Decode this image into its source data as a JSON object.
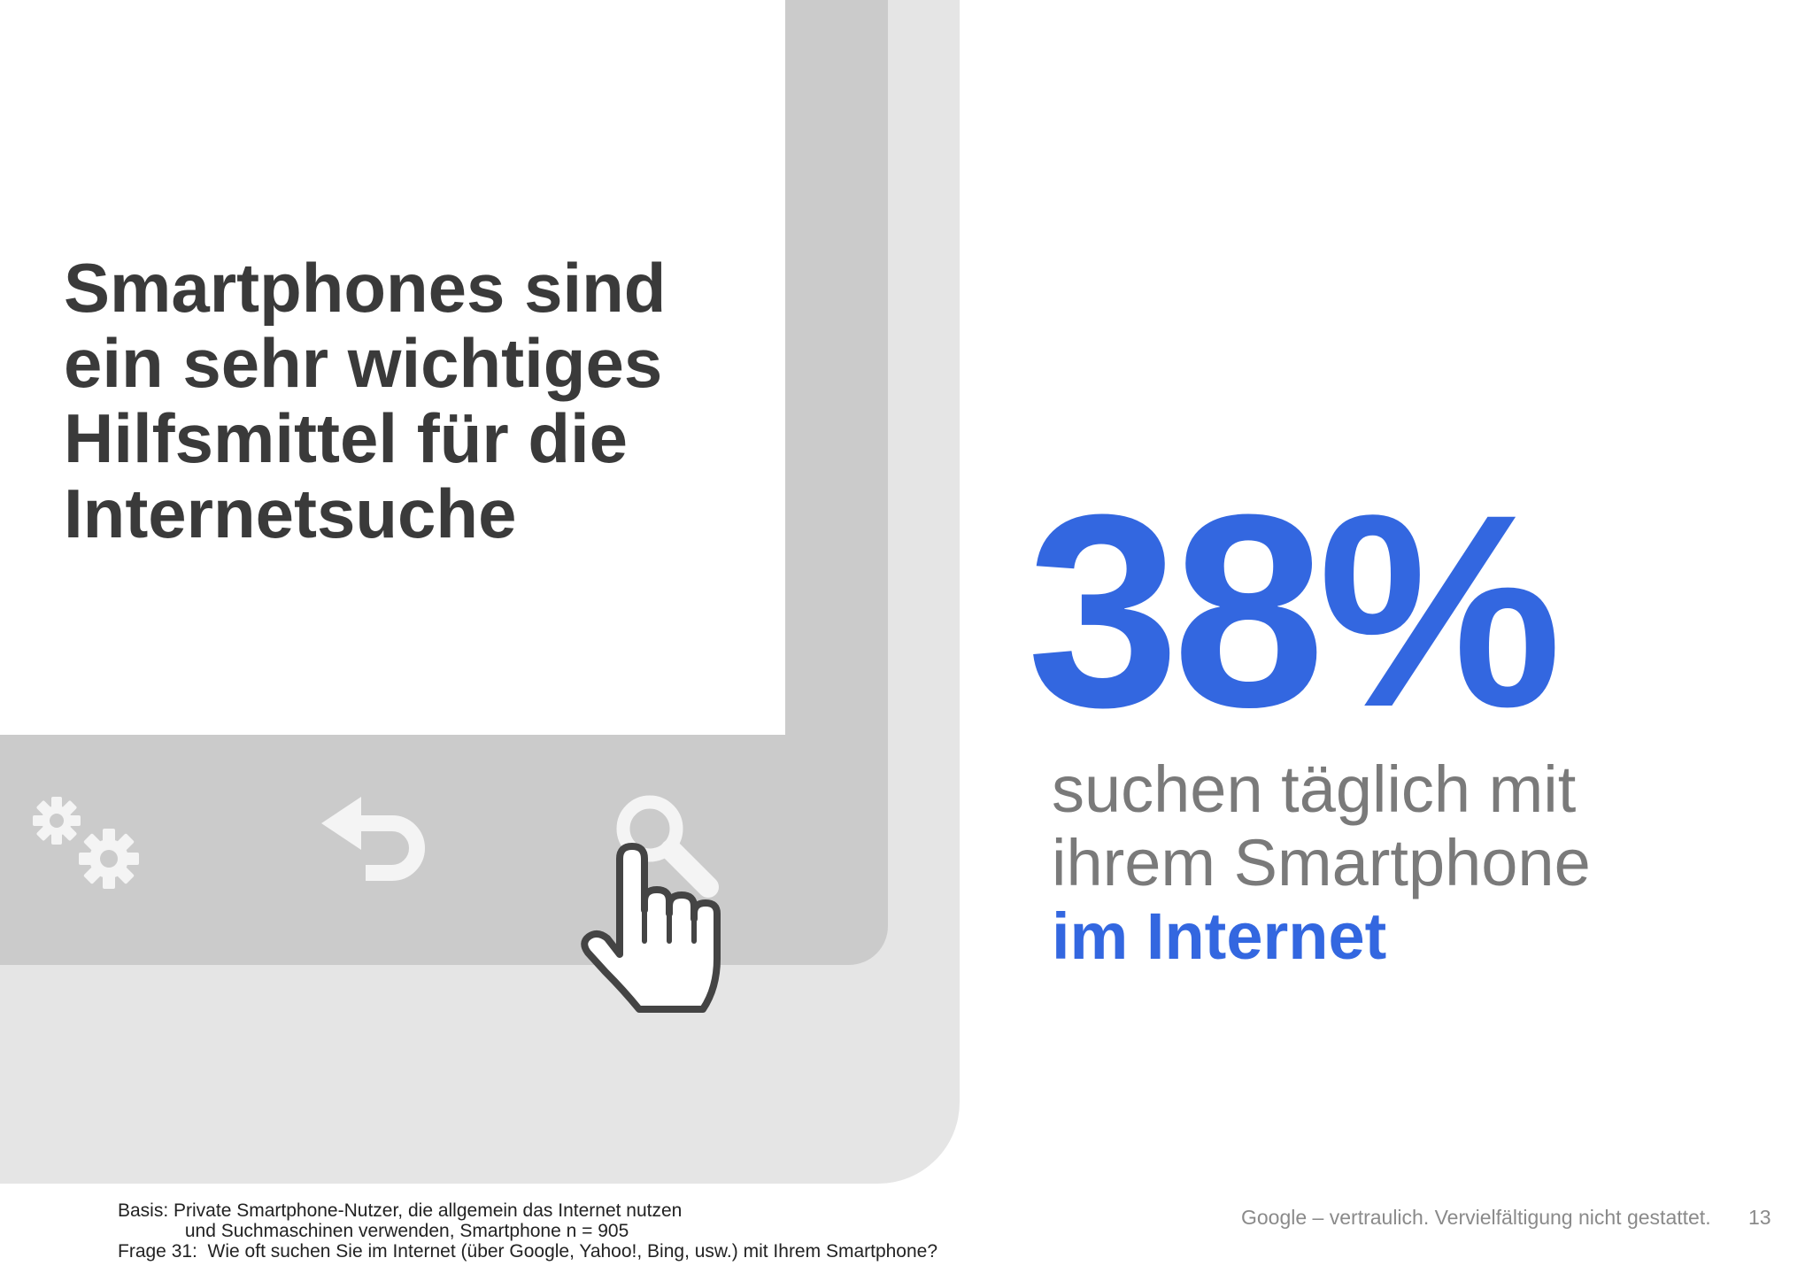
{
  "headline": {
    "lines": [
      "Smartphones sind",
      "ein sehr wichtiges",
      "Hilfsmittel für die",
      "Internetsuche"
    ]
  },
  "nav_icons": [
    "settings-icon",
    "back-icon",
    "search-icon"
  ],
  "cursor_icon": "hand-pointer-icon",
  "stat": {
    "value": "38%",
    "desc_lines": [
      "suchen täglich mit",
      "ihrem Smartphone"
    ],
    "desc_emphasis": "im Internet"
  },
  "footnote": {
    "lines": [
      "Basis: Private Smartphone-Nutzer, die allgemein das Internet nutzen",
      "             und Suchmaschinen verwenden, Smartphone n = 905",
      "Frage 31:  Wie oft suchen Sie im Internet (über Google, Yahoo!, Bing, usw.) mit Ihrem Smartphone?"
    ]
  },
  "confidential_note": "Google – vertraulich. Vervielfältigung nicht gestattet.",
  "page_number": "13",
  "colors": {
    "accent": "#3367e0",
    "heading": "#3a3a3a",
    "body_grey": "#7a7a7a",
    "phone_outer": "#e5e5e5",
    "phone_bezel": "#cbcbcb"
  }
}
